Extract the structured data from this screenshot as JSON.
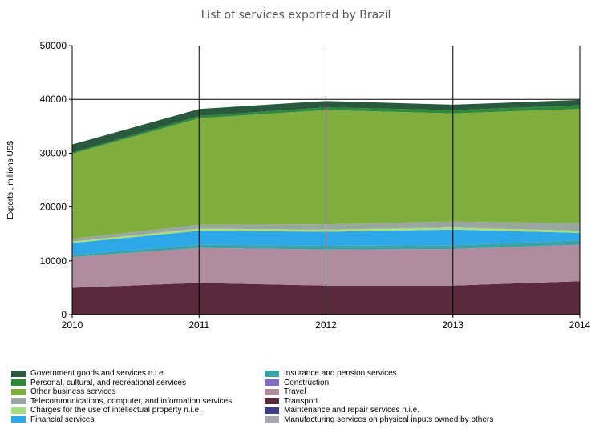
{
  "chart_data": {
    "type": "area",
    "stacked": true,
    "title": "List of services exported by Brazil",
    "ylabel": "Exports , millions US$",
    "xlabel": "",
    "x": [
      "2010",
      "2011",
      "2012",
      "2013",
      "2014"
    ],
    "ylim": [
      0,
      50000
    ],
    "yticks": [
      "0",
      "10000",
      "20000",
      "30000",
      "40000",
      "50000"
    ],
    "grid": "vertical lines at each year and horizontal line at 40000",
    "legend_position": "bottom",
    "series": [
      {
        "name": "Transport",
        "color": "#5a2a3c",
        "values": [
          5000,
          5900,
          5400,
          5400,
          6200
        ]
      },
      {
        "name": "Travel",
        "color": "#ae8c9e",
        "values": [
          5700,
          6500,
          6700,
          6800,
          6800
        ]
      },
      {
        "name": "Maintenance and repair services n.i.e.",
        "color": "#3b3f8a",
        "values": [
          0,
          0,
          0,
          0,
          0
        ]
      },
      {
        "name": "Insurance and pension services",
        "color": "#3aa3a8",
        "values": [
          400,
          600,
          700,
          700,
          800
        ]
      },
      {
        "name": "Construction",
        "color": "#7f6ec4",
        "values": [
          0,
          0,
          0,
          0,
          0
        ]
      },
      {
        "name": "Financial services",
        "color": "#2ea7e8",
        "values": [
          2200,
          2600,
          2600,
          2900,
          1400
        ]
      },
      {
        "name": "Charges for the use of intellectual property n.i.e.",
        "color": "#a6dd7e",
        "values": [
          300,
          400,
          400,
          400,
          400
        ]
      },
      {
        "name": "Telecommunications, computer, and information services",
        "color": "#9aa7a0",
        "values": [
          500,
          700,
          1000,
          1100,
          1400
        ]
      },
      {
        "name": "Manufacturing services on physical inputs owned by others",
        "color": "#a9a6b8",
        "values": [
          0,
          0,
          0,
          0,
          0
        ]
      },
      {
        "name": "Other business services",
        "color": "#7fae3f",
        "values": [
          15800,
          19800,
          21200,
          20100,
          21200
        ]
      },
      {
        "name": "Personal, cultural, and recreational services",
        "color": "#2e8a3a",
        "values": [
          200,
          400,
          500,
          600,
          700
        ]
      },
      {
        "name": "Government goods and services n.i.e.",
        "color": "#2a5a3e",
        "values": [
          1500,
          1300,
          1200,
          1000,
          1000
        ]
      }
    ],
    "legend": [
      {
        "name": "Government goods and services n.i.e.",
        "color": "#2a5a3e"
      },
      {
        "name": "Insurance and pension services",
        "color": "#3aa3a8"
      },
      {
        "name": "Personal, cultural, and recreational services",
        "color": "#2e8a3a"
      },
      {
        "name": "Construction",
        "color": "#7f6ec4"
      },
      {
        "name": "Other business services",
        "color": "#7fae3f"
      },
      {
        "name": "Travel",
        "color": "#ae8c9e"
      },
      {
        "name": "Telecommunications, computer, and information services",
        "color": "#9aa7a0"
      },
      {
        "name": "Transport",
        "color": "#5a2a3c"
      },
      {
        "name": "Charges for the use of intellectual property n.i.e.",
        "color": "#a6dd7e"
      },
      {
        "name": "Maintenance and repair services n.i.e.",
        "color": "#3b3f8a"
      },
      {
        "name": "Financial services",
        "color": "#2ea7e8"
      },
      {
        "name": "Manufacturing services on physical inputs owned by others",
        "color": "#a9a6b8"
      }
    ]
  }
}
